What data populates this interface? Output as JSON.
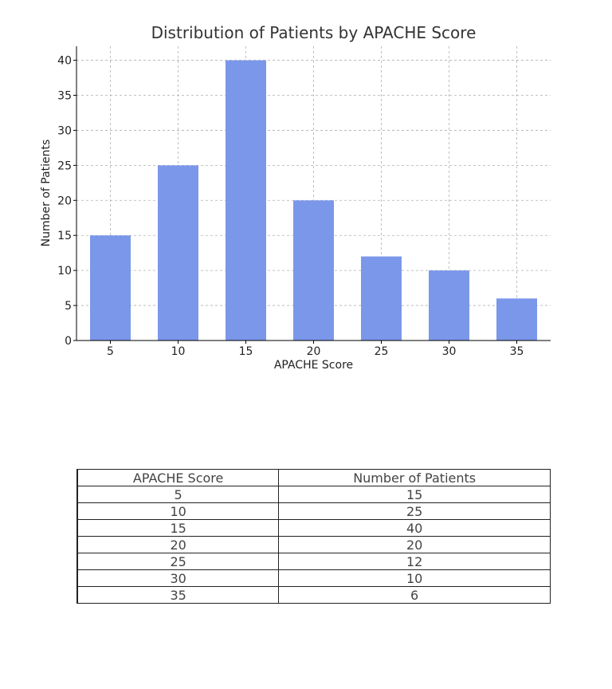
{
  "colors": {
    "bar": "#7b97ea",
    "grid": "#b0b0b0",
    "axis": "#000000"
  },
  "chart_data": {
    "type": "bar",
    "title": "Distribution of Patients by APACHE Score",
    "xlabel": "APACHE Score",
    "ylabel": "Number of Patients",
    "categories": [
      "5",
      "10",
      "15",
      "20",
      "25",
      "30",
      "35"
    ],
    "values": [
      15,
      25,
      40,
      20,
      12,
      10,
      6
    ],
    "ylim": [
      0,
      42
    ],
    "yticks": [
      0,
      5,
      10,
      15,
      20,
      25,
      30,
      35,
      40
    ],
    "grid": true,
    "legend": "none"
  },
  "table": {
    "headers": [
      "APACHE Score",
      "Number of Patients"
    ],
    "rows": [
      [
        "5",
        "15"
      ],
      [
        "10",
        "25"
      ],
      [
        "15",
        "40"
      ],
      [
        "20",
        "20"
      ],
      [
        "25",
        "12"
      ],
      [
        "30",
        "10"
      ],
      [
        "35",
        "6"
      ]
    ]
  }
}
